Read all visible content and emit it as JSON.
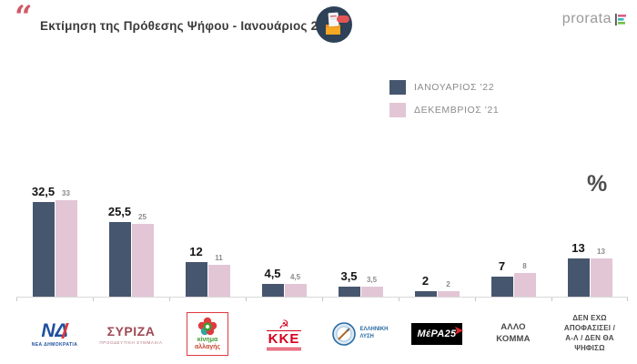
{
  "header": {
    "quote_mark": "“",
    "title": "Εκτίμηση της Πρόθεσης Ψήφου - Ιανουάριος 2022",
    "brand": "prorata"
  },
  "legend": [
    {
      "label": "ΙΑΝΟΥΑΡΙΟΣ '22",
      "color": "#46566e"
    },
    {
      "label": "ΔΕΚΕΜΒΡΙΟΣ '21",
      "color": "#e2c6d6"
    }
  ],
  "unit_label": "%",
  "chart_data": {
    "type": "bar",
    "title": "Εκτίμηση της Πρόθεσης Ψήφου - Ιανουάριος 2022",
    "categories": [
      "ΝΕΑ ΔΗΜΟΚΡΑΤΙΑ",
      "ΣΥΡΙΖΑ",
      "ΚΙΝΗΜΑ ΑΛΛΑΓΗΣ",
      "ΚΚΕ",
      "ΕΛΛΗΝΙΚΗ ΛΥΣΗ",
      "ΜέΡΑ25",
      "ΑΛΛΟ ΚΟΜΜΑ",
      "ΔΕΝ ΕΧΩ ΑΠΟΦΑΣΙΣΕΙ / Α-Λ / ΔΕΝ ΘΑ ΨΗΦΙΣΩ"
    ],
    "series": [
      {
        "name": "ΙΑΝΟΥΑΡΙΟΣ '22",
        "color": "#46566e",
        "values": [
          32.5,
          25.5,
          12,
          4.5,
          3.5,
          2,
          7,
          13
        ],
        "labels": [
          "32,5",
          "25,5",
          "12",
          "4,5",
          "3,5",
          "2",
          "7",
          "13"
        ]
      },
      {
        "name": "ΔΕΚΕΜΒΡΙΟΣ '21",
        "color": "#e2c6d6",
        "values": [
          33,
          25,
          11,
          4.5,
          3.5,
          2,
          8,
          13
        ],
        "labels": [
          "33",
          "25",
          "11",
          "4,5",
          "3,5",
          "2",
          "8",
          "13"
        ]
      }
    ],
    "ylabel": "%",
    "ylim": [
      0,
      35
    ],
    "grid": false,
    "legend_position": "top-right"
  },
  "parties": [
    {
      "name": "ΝΕΑ ΔΗΜΟΚΡΑΤΙΑ",
      "logo_main": "ΝΔ",
      "logo_sub": "ΝΕΑ ΔΗΜΟΚΡΑΤΙΑ"
    },
    {
      "name": "ΣΥΡΙΖΑ",
      "logo_main": "ΣΥΡΙΖΑ",
      "logo_sub": "ΠΡΟΟΔΕΥΤΙΚΗ ΣΥΜΜΑΧΙΑ"
    },
    {
      "name": "ΚΙΝΗΜΑ ΑΛΛΑΓΗΣ",
      "logo_line1": "κίνημα",
      "logo_line2": "αλλαγής"
    },
    {
      "name": "ΚΚΕ",
      "logo_main": "ΚΚΕ"
    },
    {
      "name": "ΕΛΛΗΝΙΚΗ ΛΥΣΗ",
      "logo_line1": "ΕΛΛΗΝΙΚΗ",
      "logo_line2": "ΛΥΣΗ"
    },
    {
      "name": "ΜέΡΑ25",
      "logo_main": "ΜέΡΑ25"
    },
    {
      "name": "ΑΛΛΟ ΚΟΜΜΑ",
      "line1": "ΑΛΛΟ",
      "line2": "ΚΟΜΜΑ"
    },
    {
      "name": "ΔΕΝ ΕΧΩ ΑΠΟΦΑΣΙΣΕΙ / Α-Λ / ΔΕΝ ΘΑ ΨΗΦΙΣΩ",
      "line1": "ΔΕΝ ΕΧΩ ΑΠΟΦΑΣΙΣΕΙ /",
      "line2": "Α-Λ / ΔΕΝ ΘΑ ΨΗΦΙΣΩ"
    }
  ]
}
